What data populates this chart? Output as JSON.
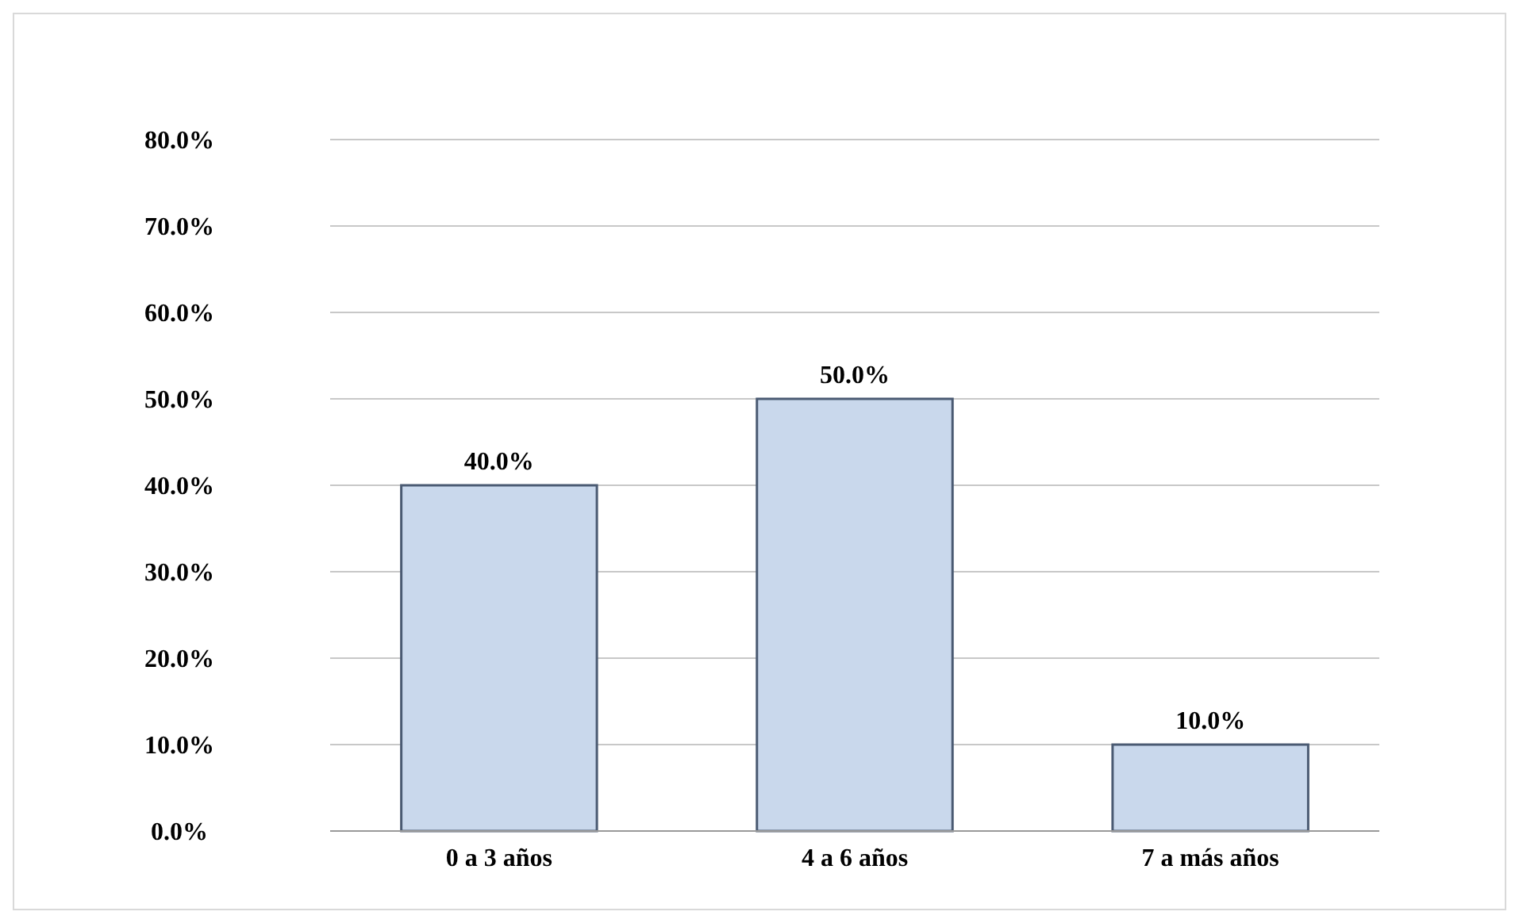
{
  "chart_data": {
    "type": "bar",
    "categories": [
      "0 a 3 años",
      "4 a 6 años",
      "7 a más años"
    ],
    "values": [
      40,
      50,
      10
    ],
    "color": "#c9d8ec",
    "value_labels": [
      "40.0%",
      "50.0%",
      "10.0%"
    ],
    "ylim": [
      0,
      80
    ],
    "yticks": [
      {
        "value": 0,
        "label": "0.0%"
      },
      {
        "value": 10,
        "label": "10.0%"
      },
      {
        "value": 20,
        "label": "20.0%"
      },
      {
        "value": 30,
        "label": "30.0%"
      },
      {
        "value": 40,
        "label": "40.0%"
      },
      {
        "value": 50,
        "label": "50.0%"
      },
      {
        "value": 60,
        "label": "60.0%"
      },
      {
        "value": 70,
        "label": "70.0%"
      },
      {
        "value": 80,
        "label": "80.0%"
      }
    ],
    "grid": "y"
  }
}
